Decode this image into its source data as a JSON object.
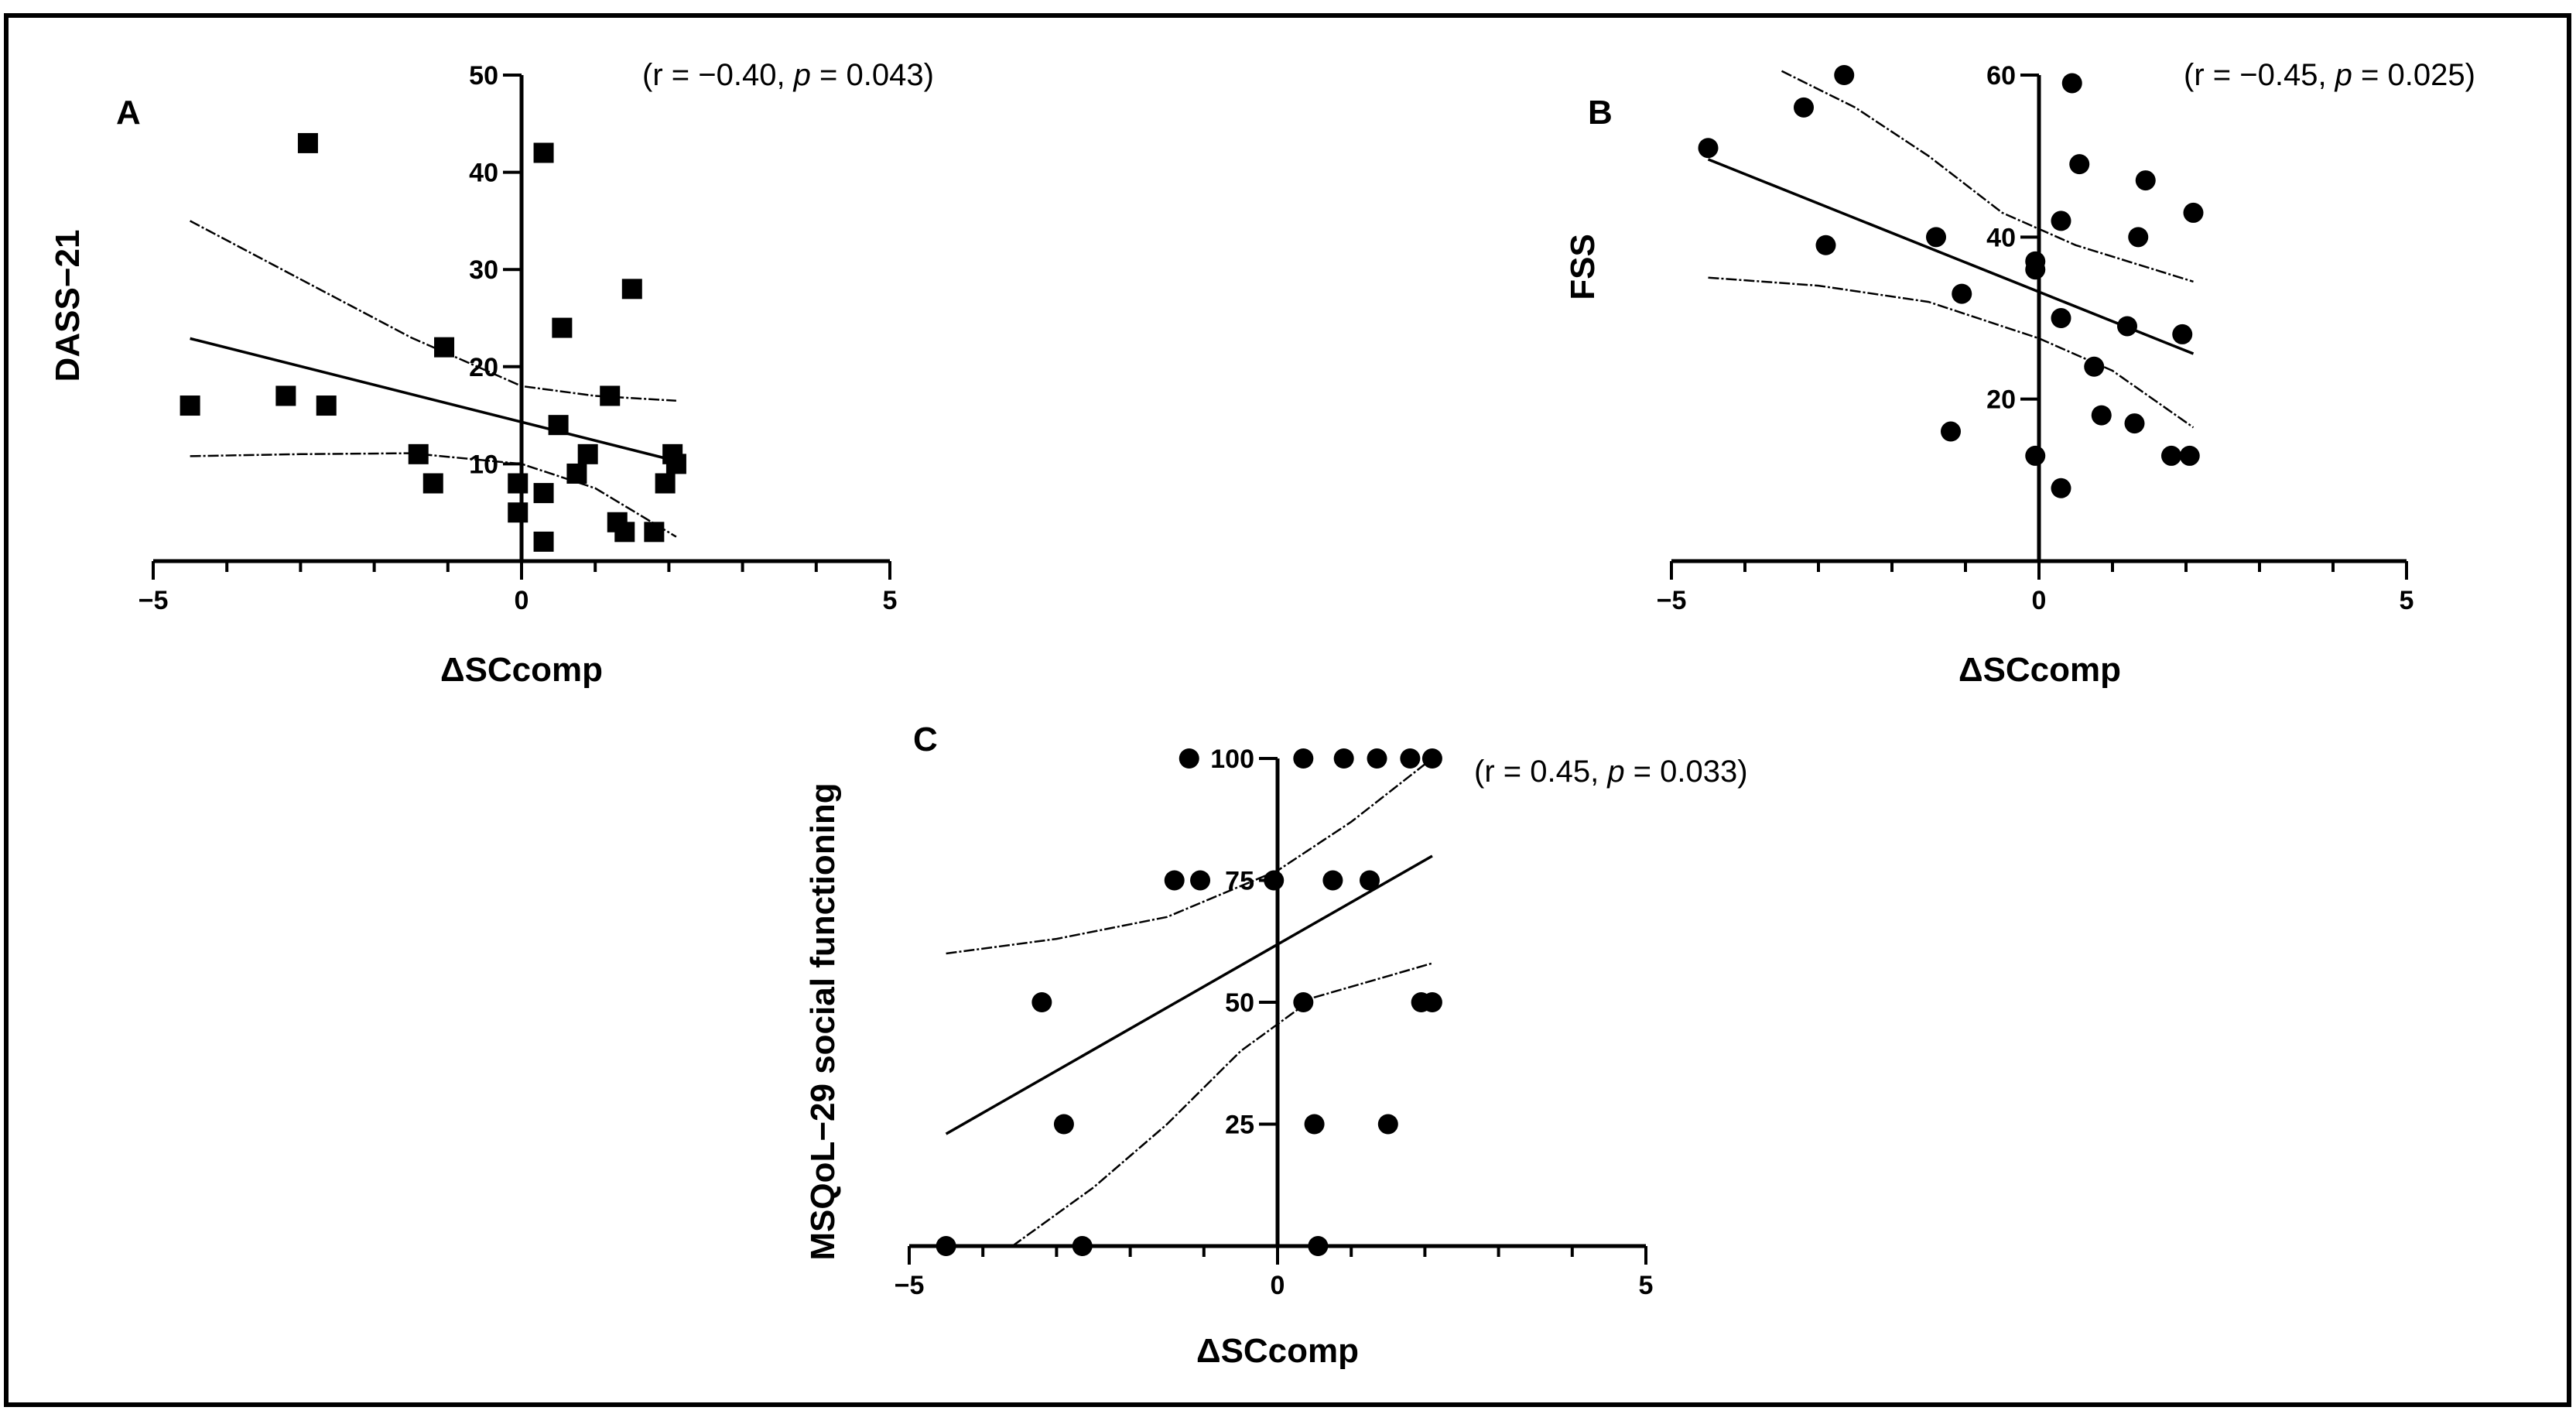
{
  "chart_data": [
    {
      "type": "scatter",
      "panel_label": "A",
      "marker": "square",
      "annotation": {
        "prefix": "(r = −0.40, ",
        "p_label": "p",
        "suffix": " = 0.043)"
      },
      "xlabel": "ΔSCcomp",
      "ylabel": "DASS−21",
      "xlim": [
        -5,
        5
      ],
      "ylim": [
        0,
        50
      ],
      "xticks": [
        -5,
        0,
        5
      ],
      "xtick_labels": [
        "−5",
        "0",
        "5"
      ],
      "yticks": [
        10,
        20,
        30,
        40,
        50
      ],
      "ytick_labels": [
        "10",
        "20",
        "30",
        "40",
        "50"
      ],
      "points": [
        {
          "x": -4.5,
          "y": 16
        },
        {
          "x": -3.2,
          "y": 17
        },
        {
          "x": -2.9,
          "y": 43
        },
        {
          "x": -2.65,
          "y": 16
        },
        {
          "x": -1.4,
          "y": 11
        },
        {
          "x": -1.2,
          "y": 8
        },
        {
          "x": -1.05,
          "y": 22
        },
        {
          "x": -0.05,
          "y": 8
        },
        {
          "x": -0.05,
          "y": 5
        },
        {
          "x": 0.3,
          "y": 42
        },
        {
          "x": 0.3,
          "y": 7
        },
        {
          "x": 0.3,
          "y": 2
        },
        {
          "x": 0.5,
          "y": 14
        },
        {
          "x": 0.55,
          "y": 24
        },
        {
          "x": 0.75,
          "y": 9
        },
        {
          "x": 0.9,
          "y": 11
        },
        {
          "x": 1.2,
          "y": 17
        },
        {
          "x": 1.3,
          "y": 4
        },
        {
          "x": 1.4,
          "y": 3
        },
        {
          "x": 1.5,
          "y": 28
        },
        {
          "x": 1.8,
          "y": 3
        },
        {
          "x": 1.95,
          "y": 8
        },
        {
          "x": 2.05,
          "y": 11
        },
        {
          "x": 2.1,
          "y": 10
        }
      ],
      "fit_line": {
        "x": [
          -4.5,
          2.1
        ],
        "y": [
          22.9,
          10.3
        ]
      },
      "ci_upper": {
        "x": [
          -4.5,
          -3.0,
          -1.5,
          0.0,
          1.0,
          2.1
        ],
        "y": [
          35.0,
          29.0,
          23.0,
          18.0,
          17.0,
          16.5
        ]
      },
      "ci_lower": {
        "x": [
          -4.5,
          -3.0,
          -1.5,
          0.0,
          1.0,
          2.1
        ],
        "y": [
          10.8,
          11.0,
          11.1,
          10.0,
          7.5,
          2.5
        ]
      }
    },
    {
      "type": "scatter",
      "panel_label": "B",
      "marker": "circle",
      "annotation": {
        "prefix": "(r = −0.45, ",
        "p_label": "p",
        "suffix": " = 0.025)"
      },
      "xlabel": "ΔSCcomp",
      "ylabel": "FSS",
      "xlim": [
        -5,
        5
      ],
      "ylim": [
        0,
        60
      ],
      "xticks": [
        -5,
        0,
        5
      ],
      "xtick_labels": [
        "−5",
        "0",
        "5"
      ],
      "yticks": [
        20,
        40,
        60
      ],
      "ytick_labels": [
        "20",
        "40",
        "60"
      ],
      "points": [
        {
          "x": -4.5,
          "y": 51
        },
        {
          "x": -3.2,
          "y": 56
        },
        {
          "x": -2.65,
          "y": 60
        },
        {
          "x": -2.9,
          "y": 39
        },
        {
          "x": -1.4,
          "y": 40
        },
        {
          "x": -1.05,
          "y": 33
        },
        {
          "x": -1.2,
          "y": 16
        },
        {
          "x": -0.05,
          "y": 37
        },
        {
          "x": -0.05,
          "y": 36
        },
        {
          "x": -0.05,
          "y": 13
        },
        {
          "x": 0.3,
          "y": 42
        },
        {
          "x": 0.3,
          "y": 30
        },
        {
          "x": 0.3,
          "y": 9
        },
        {
          "x": 0.45,
          "y": 59
        },
        {
          "x": 0.55,
          "y": 49
        },
        {
          "x": 0.75,
          "y": 24
        },
        {
          "x": 0.85,
          "y": 18
        },
        {
          "x": 1.2,
          "y": 29
        },
        {
          "x": 1.3,
          "y": 17
        },
        {
          "x": 1.35,
          "y": 40
        },
        {
          "x": 1.45,
          "y": 47
        },
        {
          "x": 1.8,
          "y": 13
        },
        {
          "x": 1.95,
          "y": 28
        },
        {
          "x": 2.05,
          "y": 13
        },
        {
          "x": 2.1,
          "y": 43
        }
      ],
      "fit_line": {
        "x": [
          -4.5,
          2.1
        ],
        "y": [
          49.6,
          25.6
        ]
      },
      "ci_upper": {
        "x": [
          -3.5,
          -2.5,
          -1.5,
          -0.5,
          0.5,
          2.1
        ],
        "y": [
          60.5,
          56.0,
          50.0,
          43.0,
          39.0,
          34.5
        ]
      },
      "ci_lower": {
        "x": [
          -4.5,
          -3.0,
          -1.5,
          0.0,
          1.0,
          2.1
        ],
        "y": [
          35.0,
          34.0,
          32.0,
          27.5,
          23.5,
          16.5
        ]
      }
    },
    {
      "type": "scatter",
      "panel_label": "C",
      "marker": "circle",
      "annotation": {
        "prefix": "(r = 0.45, ",
        "p_label": "p",
        "suffix": " = 0.033)"
      },
      "xlabel": "ΔSCcomp",
      "ylabel": "MSQoL−29 social functioning",
      "xlim": [
        -5,
        5
      ],
      "ylim": [
        0,
        100
      ],
      "xticks": [
        -5,
        0,
        5
      ],
      "xtick_labels": [
        "−5",
        "0",
        "5"
      ],
      "yticks": [
        25,
        50,
        75,
        100
      ],
      "ytick_labels": [
        "25",
        "50",
        "75",
        "100"
      ],
      "points": [
        {
          "x": -4.5,
          "y": 0
        },
        {
          "x": -2.65,
          "y": 0
        },
        {
          "x": 0.55,
          "y": 0
        },
        {
          "x": -2.9,
          "y": 25
        },
        {
          "x": 0.5,
          "y": 25
        },
        {
          "x": 1.5,
          "y": 25
        },
        {
          "x": -3.2,
          "y": 50
        },
        {
          "x": 0.35,
          "y": 50
        },
        {
          "x": 1.95,
          "y": 50
        },
        {
          "x": 2.1,
          "y": 50
        },
        {
          "x": -1.4,
          "y": 75
        },
        {
          "x": -1.05,
          "y": 75
        },
        {
          "x": -0.05,
          "y": 75
        },
        {
          "x": 0.75,
          "y": 75
        },
        {
          "x": 1.25,
          "y": 75
        },
        {
          "x": -1.2,
          "y": 100
        },
        {
          "x": 0.35,
          "y": 100
        },
        {
          "x": 0.9,
          "y": 100
        },
        {
          "x": 1.35,
          "y": 100
        },
        {
          "x": 1.8,
          "y": 100
        },
        {
          "x": 2.1,
          "y": 100
        }
      ],
      "fit_line": {
        "x": [
          -4.5,
          2.1
        ],
        "y": [
          23.0,
          80.0
        ]
      },
      "ci_upper": {
        "x": [
          -4.5,
          -3.0,
          -1.5,
          0.0,
          1.0,
          2.1
        ],
        "y": [
          60.0,
          63.0,
          67.5,
          77.0,
          87.0,
          100.0
        ]
      },
      "ci_lower": {
        "x": [
          -3.6,
          -2.5,
          -1.5,
          -0.5,
          0.5,
          2.1
        ],
        "y": [
          0.0,
          12.0,
          25.0,
          40.0,
          51.0,
          58.0
        ]
      }
    }
  ]
}
